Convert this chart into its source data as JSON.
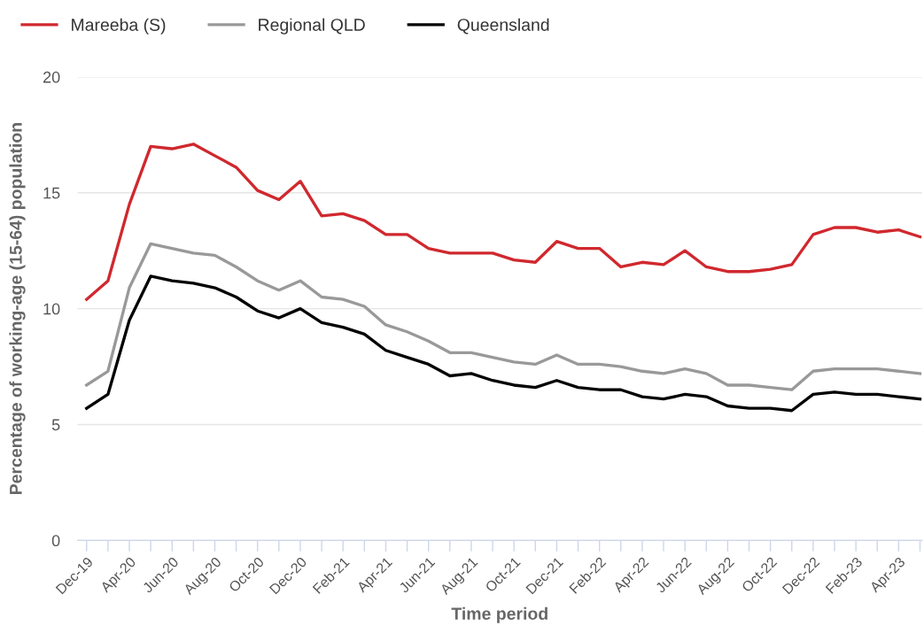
{
  "chart_data": {
    "type": "line",
    "xlabel": "Time period",
    "ylabel": "Percentage of working-age (15-64) population",
    "categories": [
      "Dec-19",
      null,
      "Apr-20",
      null,
      "Jun-20",
      null,
      "Aug-20",
      null,
      "Oct-20",
      null,
      "Dec-20",
      null,
      "Feb-21",
      null,
      "Apr-21",
      null,
      "Jun-21",
      null,
      "Aug-21",
      null,
      "Oct-21",
      null,
      "Dec-21",
      null,
      "Feb-22",
      null,
      "Apr-22",
      null,
      "Jun-22",
      null,
      "Aug-22",
      null,
      "Oct-22",
      null,
      "Dec-22",
      null,
      "Feb-23",
      null,
      "Apr-23",
      null
    ],
    "series": [
      {
        "name": "Mareeba (S)",
        "color": "#d0282e",
        "values": [
          10.4,
          11.2,
          14.5,
          17.0,
          16.9,
          17.1,
          16.6,
          16.1,
          15.1,
          14.7,
          15.5,
          14.0,
          14.1,
          13.8,
          13.2,
          13.2,
          12.6,
          12.4,
          12.4,
          12.4,
          12.1,
          12.0,
          12.9,
          12.6,
          12.6,
          11.8,
          12.0,
          11.9,
          12.5,
          11.8,
          11.6,
          11.6,
          11.7,
          11.9,
          13.2,
          13.5,
          13.5,
          13.3,
          13.4,
          13.1
        ]
      },
      {
        "name": "Regional QLD",
        "color": "#999999",
        "values": [
          6.7,
          7.3,
          10.9,
          12.8,
          12.6,
          12.4,
          12.3,
          11.8,
          11.2,
          10.8,
          11.2,
          10.5,
          10.4,
          10.1,
          9.3,
          9.0,
          8.6,
          8.1,
          8.1,
          7.9,
          7.7,
          7.6,
          8.0,
          7.6,
          7.6,
          7.5,
          7.3,
          7.2,
          7.4,
          7.2,
          6.7,
          6.7,
          6.6,
          6.5,
          7.3,
          7.4,
          7.4,
          7.4,
          7.3,
          7.2
        ]
      },
      {
        "name": "Queensland",
        "color": "#000000",
        "values": [
          5.7,
          6.3,
          9.5,
          11.4,
          11.2,
          11.1,
          10.9,
          10.5,
          9.9,
          9.6,
          10.0,
          9.4,
          9.2,
          8.9,
          8.2,
          7.9,
          7.6,
          7.1,
          7.2,
          6.9,
          6.7,
          6.6,
          6.9,
          6.6,
          6.5,
          6.5,
          6.2,
          6.1,
          6.3,
          6.2,
          5.8,
          5.7,
          5.7,
          5.6,
          6.3,
          6.4,
          6.3,
          6.3,
          6.2,
          6.1
        ]
      }
    ],
    "ylim": [
      0,
      20
    ],
    "yticks": [
      0,
      5,
      10,
      15,
      20
    ],
    "grid": "y",
    "legend": "top left",
    "marker": "none",
    "line_style": "solid"
  }
}
